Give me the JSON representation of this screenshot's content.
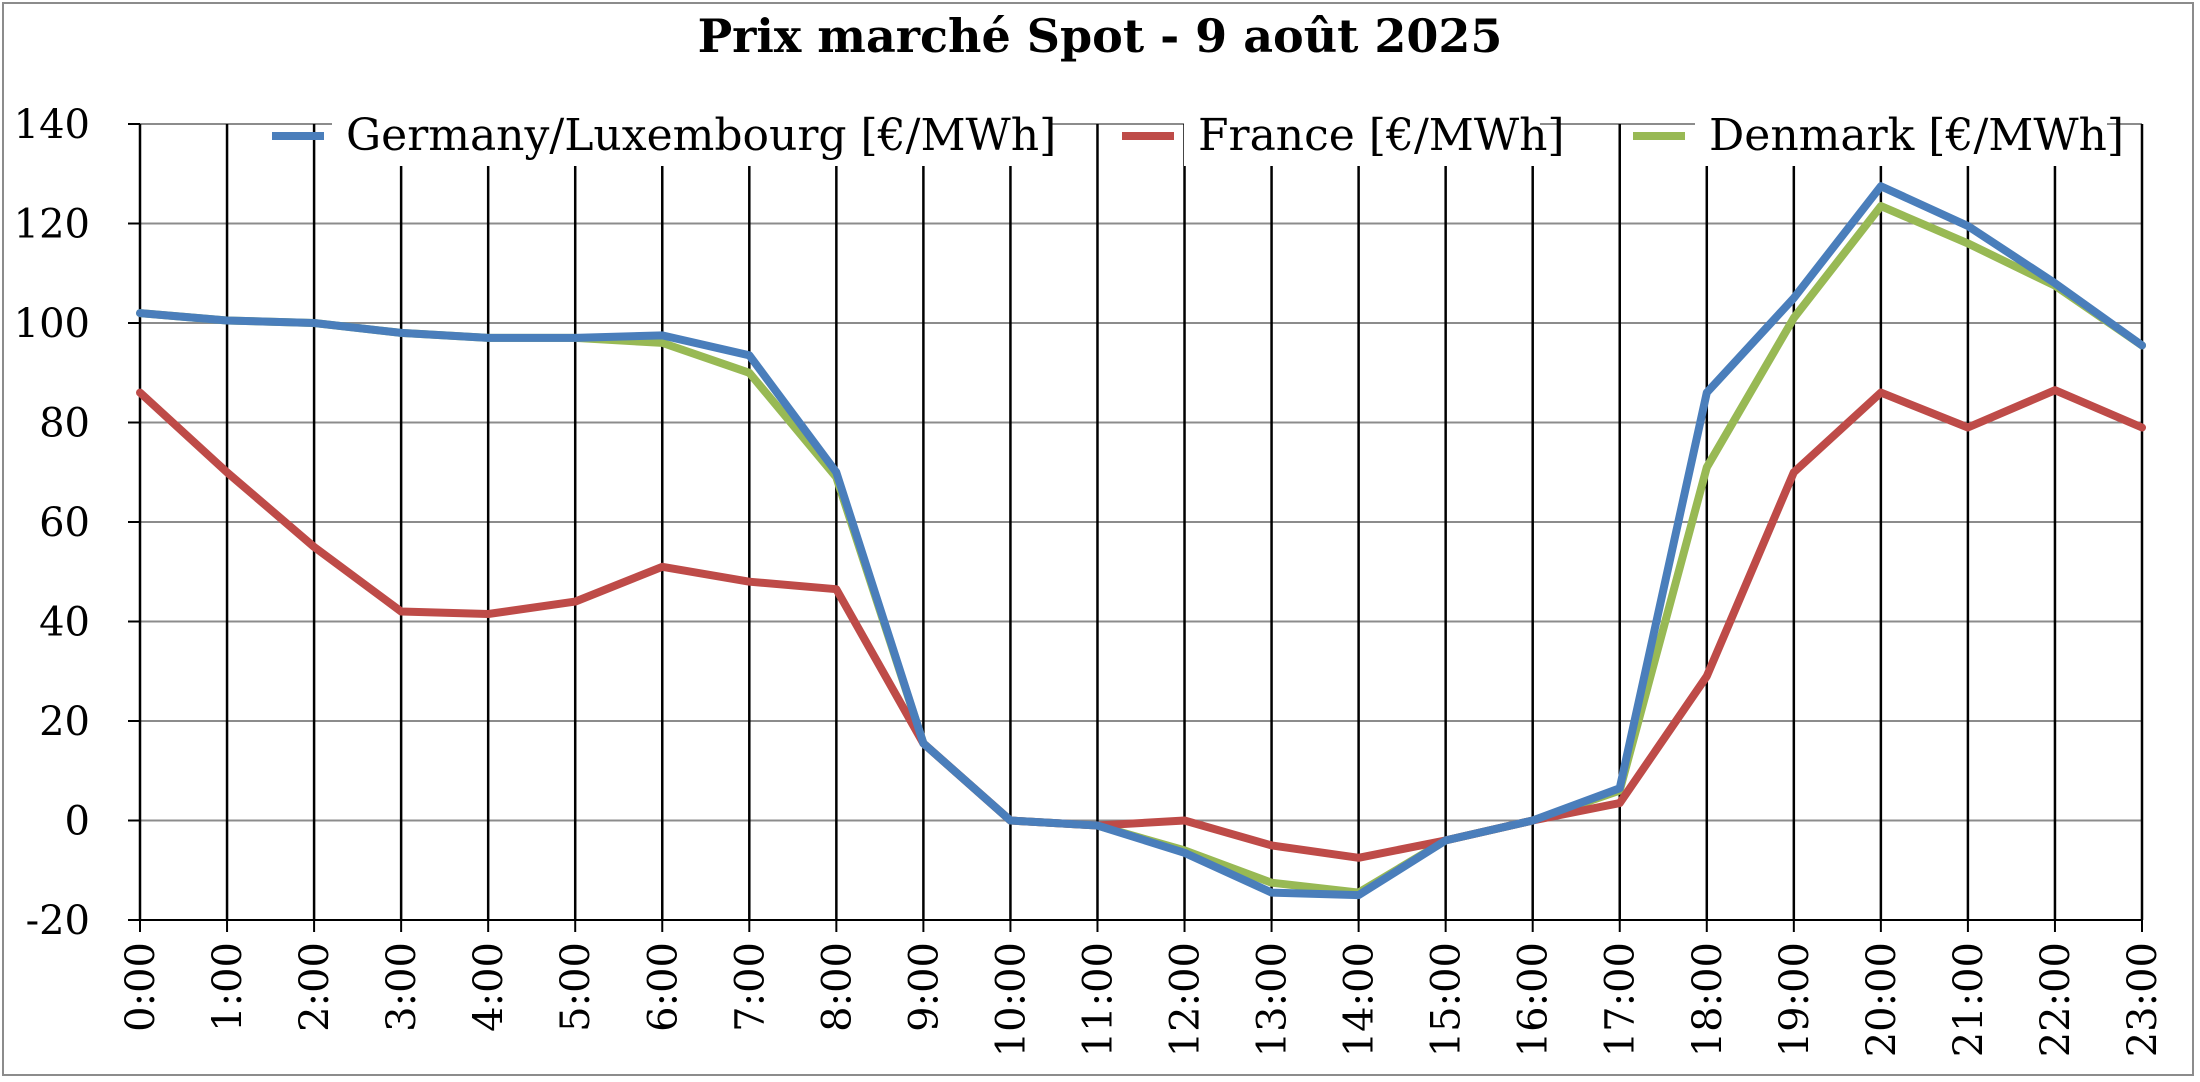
{
  "chart_data": {
    "type": "line",
    "title": "Prix marché Spot - 9 août 2025",
    "xlabel": "",
    "ylabel": "",
    "categories": [
      "0:00",
      "1:00",
      "2:00",
      "3:00",
      "4:00",
      "5:00",
      "6:00",
      "7:00",
      "8:00",
      "9:00",
      "10:00",
      "11:00",
      "12:00",
      "13:00",
      "14:00",
      "15:00",
      "16:00",
      "17:00",
      "18:00",
      "19:00",
      "20:00",
      "21:00",
      "22:00",
      "23:00"
    ],
    "ylim": [
      -20,
      140
    ],
    "yticks": [
      -20,
      0,
      20,
      40,
      60,
      80,
      100,
      120,
      140
    ],
    "grid": true,
    "legend_position": "top",
    "series": [
      {
        "name": "Germany/Luxembourg [€/MWh]",
        "color": "#4a7ebb",
        "values": [
          102,
          100.5,
          100,
          98,
          97,
          97,
          97.5,
          93.5,
          70,
          15.5,
          0,
          -1,
          -6.5,
          -14.5,
          -15,
          -4,
          0,
          6.5,
          86,
          105,
          127.5,
          119.5,
          108,
          95.5
        ]
      },
      {
        "name": "France [€/MWh]",
        "color": "#be4b48",
        "values": [
          86,
          70,
          55,
          42,
          41.5,
          44,
          51,
          48,
          46.5,
          15.5,
          0,
          -1,
          0,
          -5,
          -7.5,
          -4,
          0,
          3.5,
          29,
          70,
          86,
          79,
          86.5,
          79
        ]
      },
      {
        "name": "Denmark [€/MWh]",
        "color": "#98b954",
        "values": [
          102,
          100.5,
          100,
          98,
          97,
          97,
          96,
          90,
          69,
          15.5,
          0,
          -1,
          -6,
          -12.5,
          -14.5,
          -4,
          0,
          6,
          71,
          101,
          123.5,
          116,
          107.5,
          95.5
        ]
      }
    ]
  }
}
